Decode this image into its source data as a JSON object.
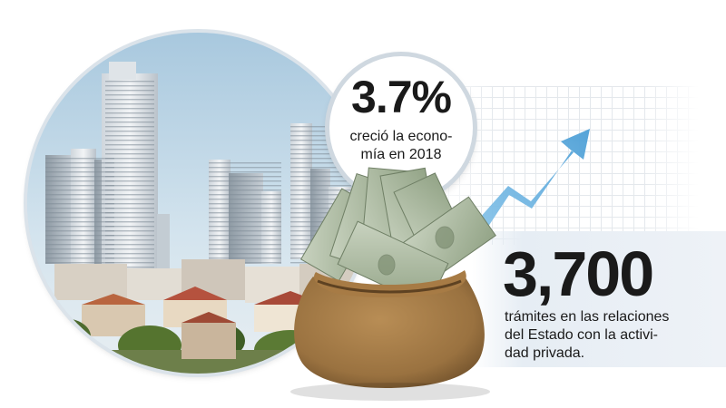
{
  "growth": {
    "value": "3.7%",
    "caption_lines": [
      "creció la econo-",
      "mía en 2018"
    ]
  },
  "procedures": {
    "value": "3,700",
    "caption_lines": [
      "trámites en las relaciones",
      "del Estado con la activi-",
      "dad privada."
    ]
  },
  "illustration": {
    "photo": "city-skyline-photo",
    "arrow": "trend-up-arrow-icon",
    "bag": "money-bag-icon"
  },
  "colors": {
    "arrow": "#63aee0",
    "bill": "#9fae93",
    "burlap": "#9a7240"
  }
}
